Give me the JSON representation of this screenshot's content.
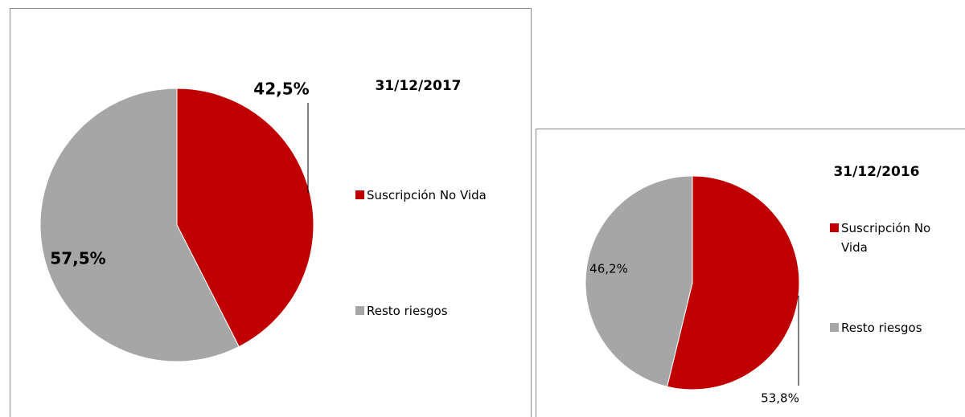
{
  "chart_data": [
    {
      "type": "pie",
      "title": "31/12/2017",
      "categories": [
        "Suscripción No Vida",
        "Resto riesgos"
      ],
      "values": [
        42.5,
        57.5
      ],
      "value_labels": [
        "42,5%",
        "57,5%"
      ],
      "colors": [
        "#c00000",
        "#a6a6a6"
      ]
    },
    {
      "type": "pie",
      "title": "31/12/2016",
      "categories": [
        "Suscripción No Vida",
        "Resto riesgos"
      ],
      "values": [
        53.8,
        46.2
      ],
      "value_labels": [
        "53,8%",
        "46,2%"
      ],
      "colors": [
        "#c00000",
        "#a6a6a6"
      ]
    }
  ]
}
